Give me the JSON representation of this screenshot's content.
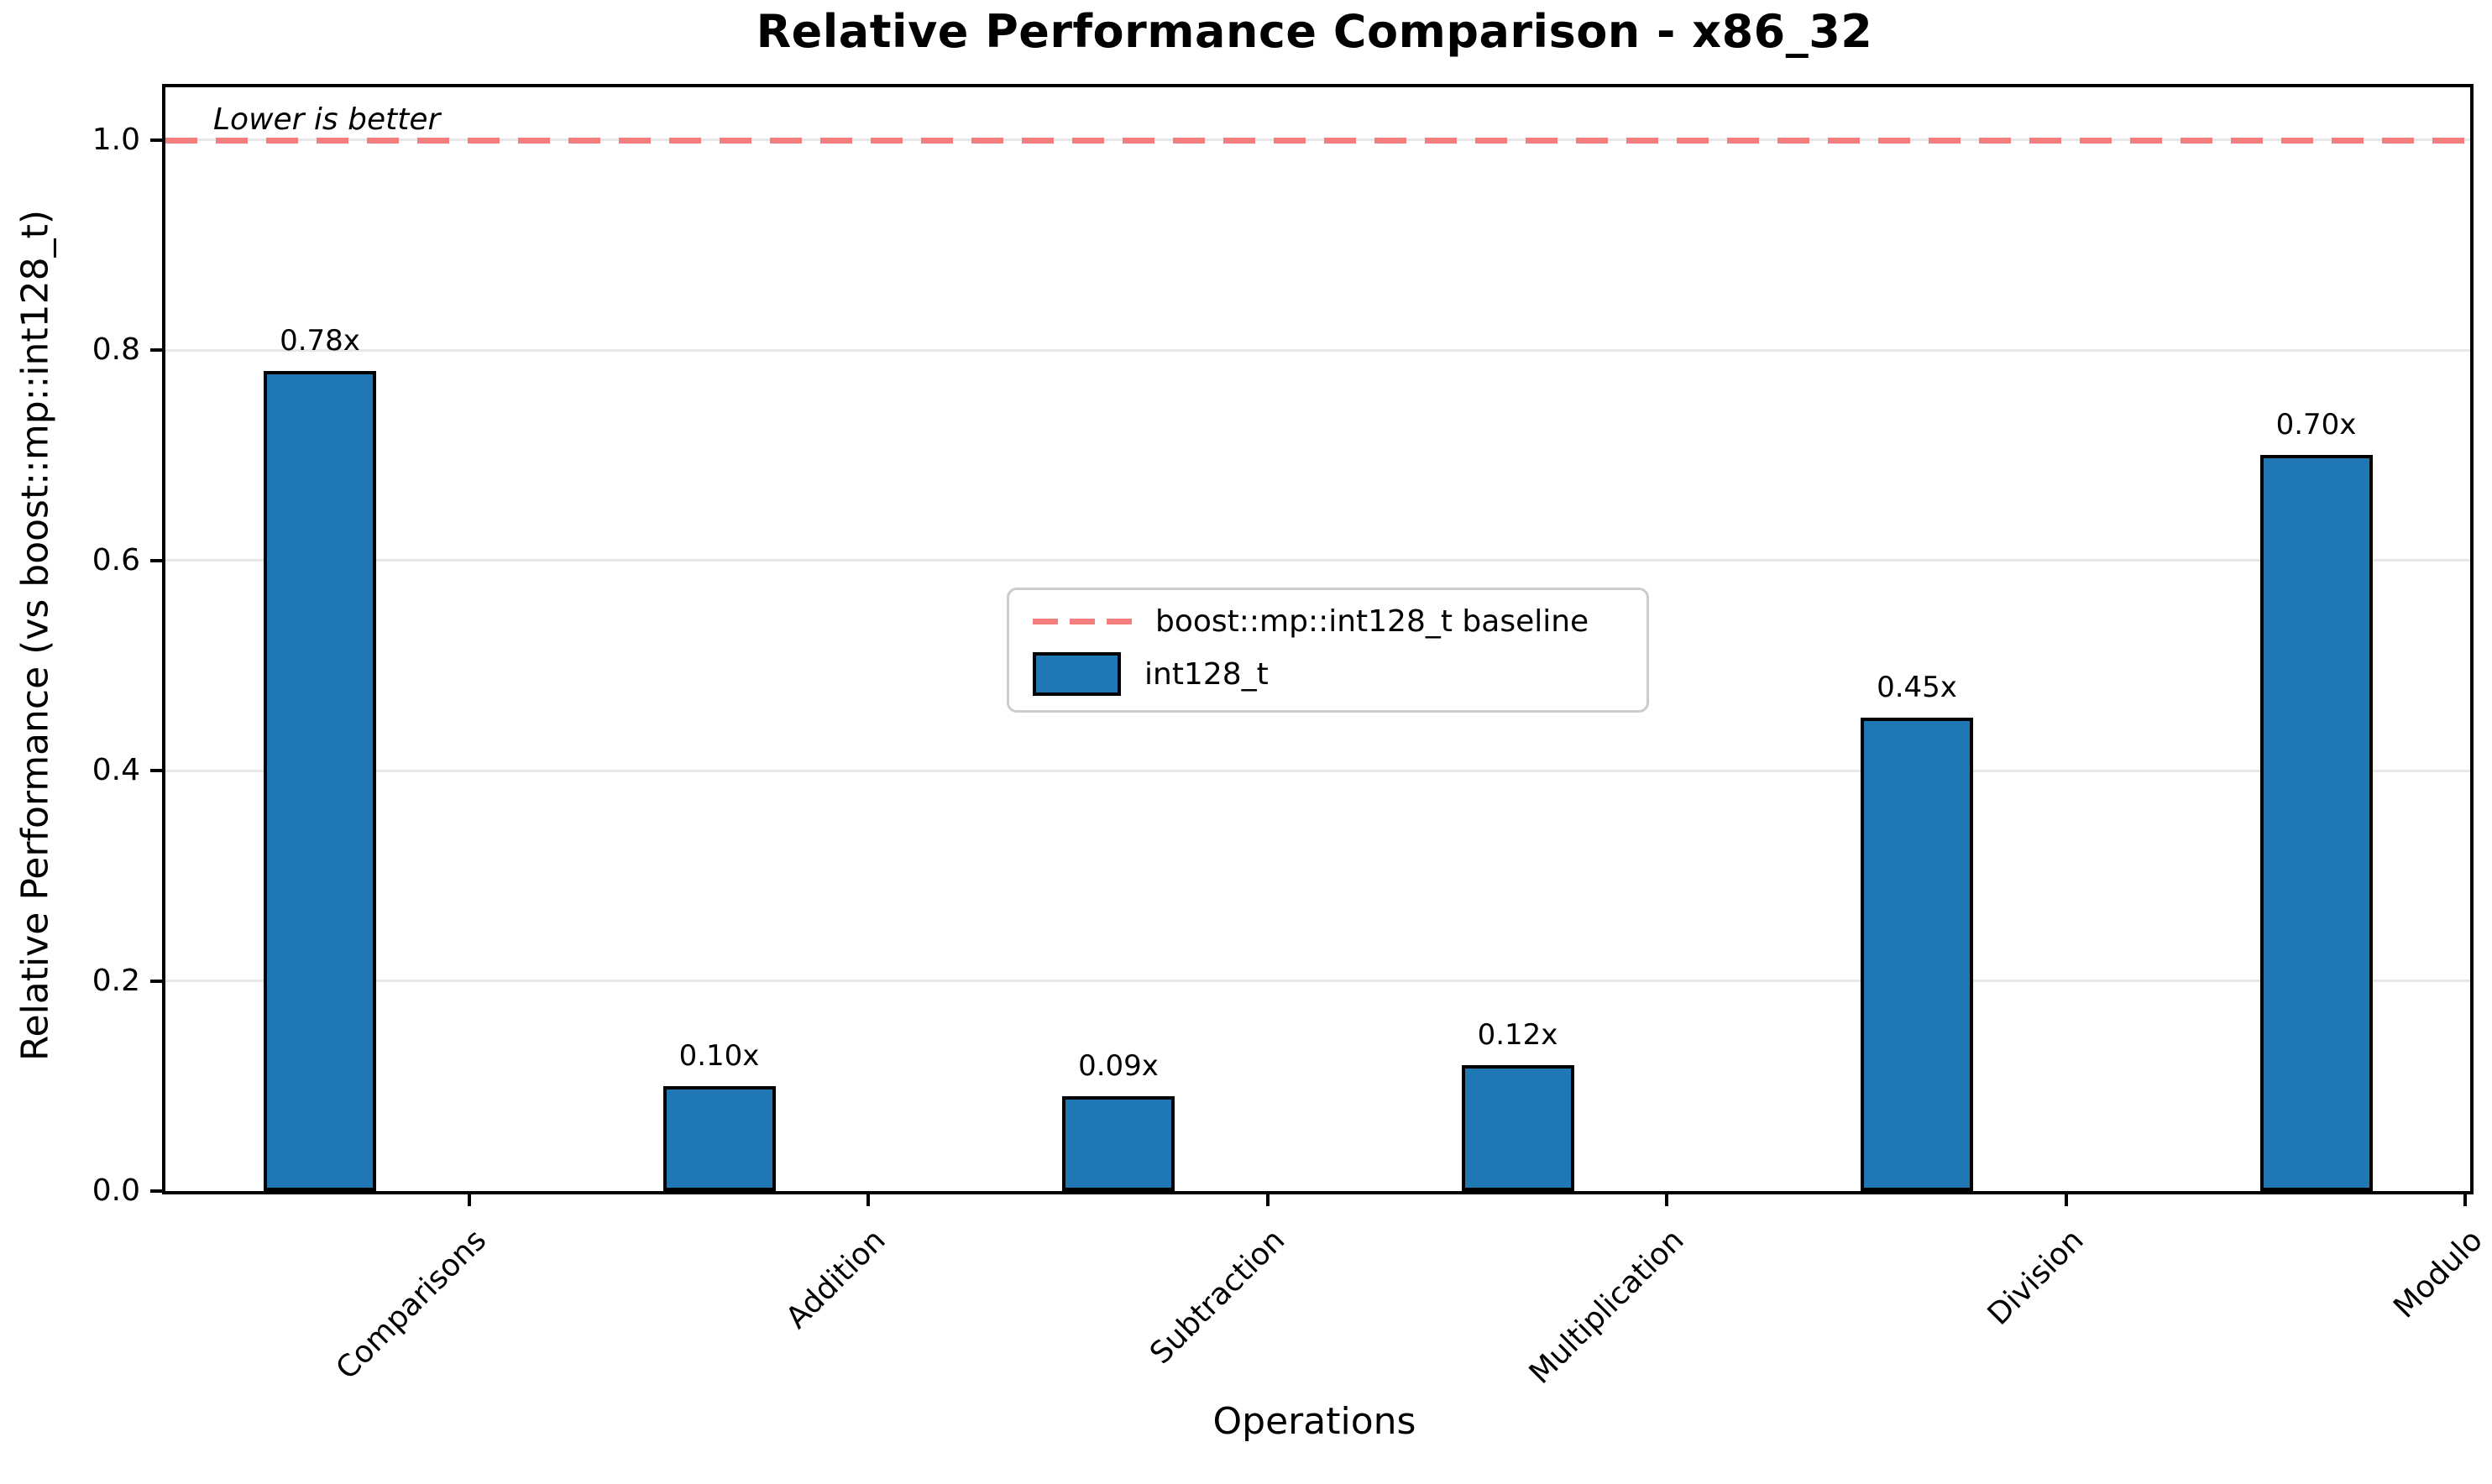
{
  "title": "Relative Performance Comparison - x86_32",
  "annotation": "Lower is better",
  "axes": {
    "x_label": "Operations",
    "y_label": "Relative Performance (vs boost::mp::int128_t)"
  },
  "legend": {
    "baseline_label": "boost::mp::int128_t baseline",
    "series_label": "int128_t"
  },
  "colors": {
    "bar_fill": "#1f77b4",
    "bar_edge": "#000000",
    "baseline_dash": "#f47d7d",
    "gridline": "#e7e7e7"
  },
  "chart_data": {
    "type": "bar",
    "title": "Relative Performance Comparison - x86_32",
    "xlabel": "Operations",
    "ylabel": "Relative Performance (vs boost::mp::int128_t)",
    "categories": [
      "Comparisons",
      "Addition",
      "Subtraction",
      "Multiplication",
      "Division",
      "Modulo"
    ],
    "series": [
      {
        "name": "int128_t",
        "values": [
          0.78,
          0.1,
          0.09,
          0.12,
          0.45,
          0.7
        ]
      }
    ],
    "bar_labels": [
      "0.78x",
      "0.10x",
      "0.09x",
      "0.12x",
      "0.45x",
      "0.70x"
    ],
    "baseline": {
      "value": 1.0,
      "label": "boost::mp::int128_t baseline"
    },
    "annotation": "Lower is better",
    "ytick_labels": [
      "0.0",
      "0.2",
      "0.4",
      "0.6",
      "0.8",
      "1.0"
    ],
    "yticks": [
      0.0,
      0.2,
      0.4,
      0.6,
      0.8,
      1.0
    ],
    "ylim": [
      0,
      1.05
    ],
    "grid": true,
    "legend_position": "center"
  }
}
